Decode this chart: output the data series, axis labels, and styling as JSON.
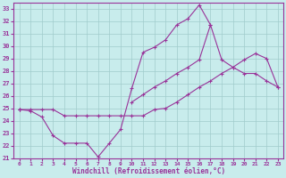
{
  "xlabel": "Windchill (Refroidissement éolien,°C)",
  "background_color": "#c8ecec",
  "grid_color": "#a0cccc",
  "line_color": "#993399",
  "xlim": [
    -0.5,
    23.5
  ],
  "ylim": [
    21,
    33.5
  ],
  "xticks": [
    0,
    1,
    2,
    3,
    4,
    5,
    6,
    7,
    8,
    9,
    10,
    11,
    12,
    13,
    14,
    15,
    16,
    17,
    18,
    19,
    20,
    21,
    22,
    23
  ],
  "yticks": [
    21,
    22,
    23,
    24,
    25,
    26,
    27,
    28,
    29,
    30,
    31,
    32,
    33
  ],
  "series": [
    {
      "x": [
        0,
        1,
        2,
        3,
        4,
        5,
        6,
        7,
        8,
        9,
        10,
        11,
        12,
        13,
        14,
        15,
        16,
        17,
        18,
        19,
        20,
        21,
        22,
        23
      ],
      "y": [
        24.9,
        24.8,
        24.3,
        22.8,
        22.2,
        22.2,
        22.2,
        21.1,
        22.2,
        23.3,
        26.6,
        29.5,
        29.9,
        30.5,
        31.7,
        32.2,
        33.3,
        31.7,
        null,
        null,
        null,
        null,
        null,
        null
      ]
    },
    {
      "x": [
        0,
        1,
        2,
        3,
        4,
        5,
        6,
        7,
        8,
        9,
        10,
        11,
        12,
        13,
        14,
        15,
        16,
        17,
        18,
        19,
        20,
        21,
        22,
        23
      ],
      "y": [
        24.9,
        null,
        null,
        null,
        null,
        null,
        null,
        null,
        null,
        null,
        25.5,
        26.1,
        26.7,
        27.2,
        27.8,
        28.3,
        28.9,
        31.7,
        28.9,
        28.3,
        27.8,
        27.8,
        27.2,
        26.7
      ]
    },
    {
      "x": [
        0,
        1,
        2,
        3,
        4,
        5,
        6,
        7,
        8,
        9,
        10,
        11,
        12,
        13,
        14,
        15,
        16,
        17,
        18,
        19,
        20,
        21,
        22,
        23
      ],
      "y": [
        24.9,
        24.9,
        24.9,
        24.9,
        24.4,
        24.4,
        24.4,
        24.4,
        24.4,
        24.4,
        24.4,
        24.4,
        24.9,
        25.0,
        25.5,
        26.1,
        26.7,
        27.2,
        27.8,
        28.3,
        28.9,
        29.4,
        29.0,
        26.7
      ]
    }
  ]
}
